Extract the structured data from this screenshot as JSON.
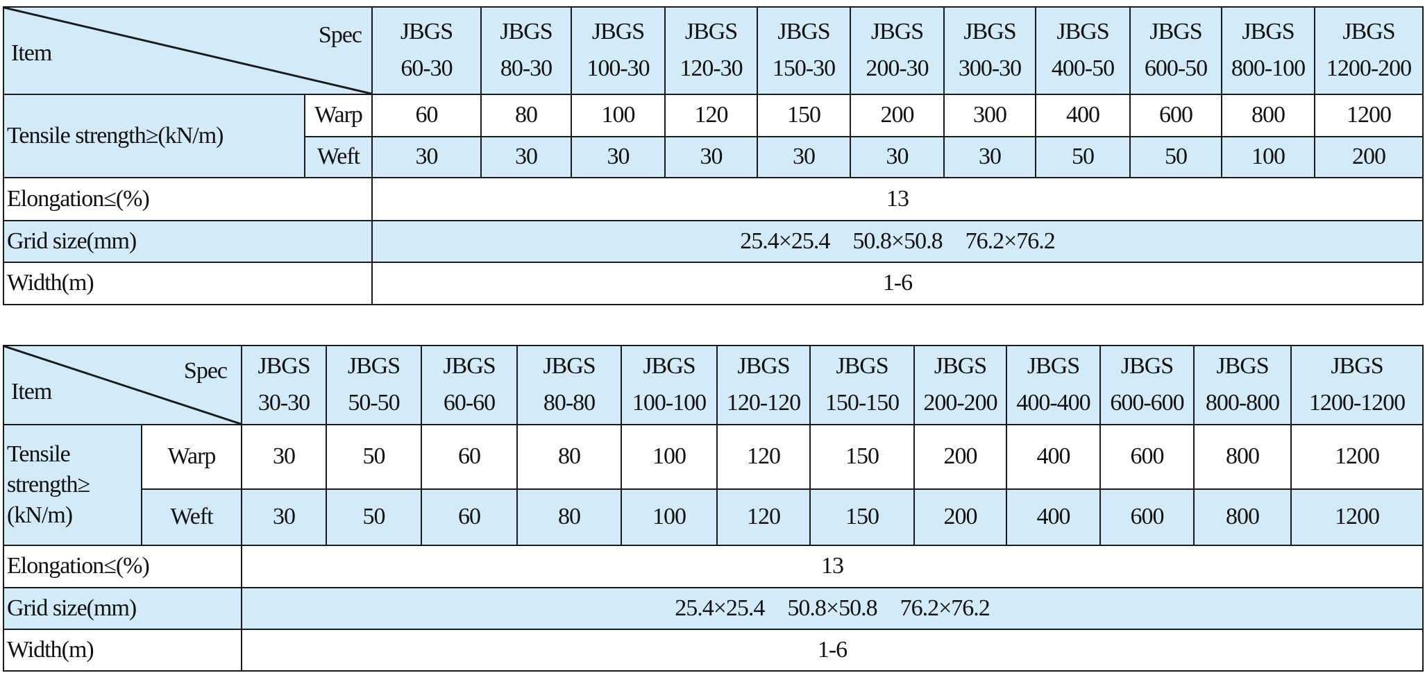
{
  "colors": {
    "header_bg": "#d3ebf8",
    "row_alt_bg": "#ffffff",
    "border": "#1a1a1a"
  },
  "tables": [
    {
      "corner": {
        "item": "Item",
        "spec": "Spec"
      },
      "specs": [
        [
          "JBGS",
          "60-30"
        ],
        [
          "JBGS",
          "80-30"
        ],
        [
          "JBGS",
          "100-30"
        ],
        [
          "JBGS",
          "120-30"
        ],
        [
          "JBGS",
          "150-30"
        ],
        [
          "JBGS",
          "200-30"
        ],
        [
          "JBGS",
          "300-30"
        ],
        [
          "JBGS",
          "400-50"
        ],
        [
          "JBGS",
          "600-50"
        ],
        [
          "JBGS",
          "800-100"
        ],
        [
          "JBGS",
          "1200-200"
        ]
      ],
      "tensile_label": "Tensile strength≥(kN/m)",
      "warp_label": "Warp",
      "weft_label": "Weft",
      "warp": [
        "60",
        "80",
        "100",
        "120",
        "150",
        "200",
        "300",
        "400",
        "600",
        "800",
        "1200"
      ],
      "weft": [
        "30",
        "30",
        "30",
        "30",
        "30",
        "30",
        "30",
        "50",
        "50",
        "100",
        "200"
      ],
      "elongation_label": "Elongation≤(%)",
      "elongation": "13",
      "grid_label": "Grid size(mm)",
      "grid": "25.4×25.4　50.8×50.8　76.2×76.2",
      "width_label": "Width(m)",
      "width": "1-6"
    },
    {
      "corner": {
        "item": "Item",
        "spec": "Spec"
      },
      "specs": [
        [
          "JBGS",
          "30-30"
        ],
        [
          "JBGS",
          "50-50"
        ],
        [
          "JBGS",
          "60-60"
        ],
        [
          "JBGS",
          "80-80"
        ],
        [
          "JBGS",
          "100-100"
        ],
        [
          "JBGS",
          "120-120"
        ],
        [
          "JBGS",
          "150-150"
        ],
        [
          "JBGS",
          "200-200"
        ],
        [
          "JBGS",
          "400-400"
        ],
        [
          "JBGS",
          "600-600"
        ],
        [
          "JBGS",
          "800-800"
        ],
        [
          "JBGS",
          "1200-1200"
        ]
      ],
      "tensile_label": "Tensile strength≥ (kN/m)",
      "warp_label": "Warp",
      "weft_label": "Weft",
      "warp": [
        "30",
        "50",
        "60",
        "80",
        "100",
        "120",
        "150",
        "200",
        "400",
        "600",
        "800",
        "1200"
      ],
      "weft": [
        "30",
        "50",
        "60",
        "80",
        "100",
        "120",
        "150",
        "200",
        "400",
        "600",
        "800",
        "1200"
      ],
      "elongation_label": "Elongation≤(%)",
      "elongation": "13",
      "grid_label": "Grid size(mm)",
      "grid": "25.4×25.4　50.8×50.8　76.2×76.2",
      "width_label": "Width(m)",
      "width": "1-6"
    }
  ]
}
